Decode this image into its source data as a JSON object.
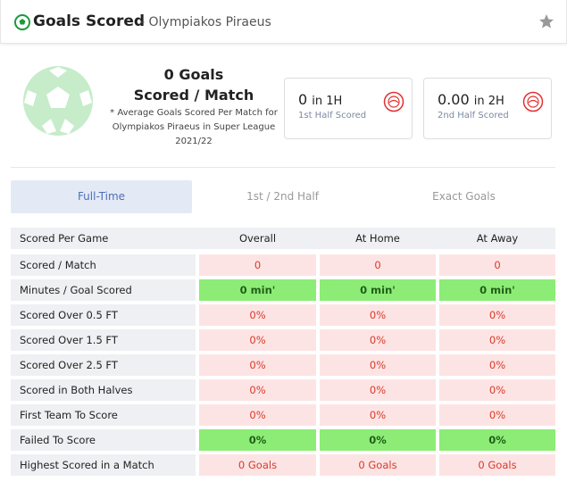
{
  "header": {
    "title": "Goals Scored",
    "subtitle": "- Olympiakos Piraeus"
  },
  "summary": {
    "value": "0 Goals",
    "label": "Scored / Match",
    "note": "* Average Goals Scored Per Match for Olympiakos Piraeus in Super League 2021/22",
    "boxes": [
      {
        "value": "0",
        "unit": "in 1H",
        "label": "1st Half Scored"
      },
      {
        "value": "0.00",
        "unit": "in 2H",
        "label": "2nd Half Scored"
      }
    ]
  },
  "tabs": [
    {
      "label": "Full-Time",
      "active": true
    },
    {
      "label": "1st / 2nd Half",
      "active": false
    },
    {
      "label": "Exact Goals",
      "active": false
    }
  ],
  "table": {
    "columns": [
      "Scored Per Game",
      "Overall",
      "At Home",
      "At Away"
    ],
    "rows": [
      {
        "label": "Scored / Match",
        "values": [
          "0",
          "0",
          "0"
        ],
        "color": "bad"
      },
      {
        "label": "Minutes / Goal Scored",
        "values": [
          "0 min'",
          "0 min'",
          "0 min'"
        ],
        "color": "good"
      },
      {
        "label": "Scored Over 0.5 FT",
        "values": [
          "0%",
          "0%",
          "0%"
        ],
        "color": "bad"
      },
      {
        "label": "Scored Over 1.5 FT",
        "values": [
          "0%",
          "0%",
          "0%"
        ],
        "color": "bad"
      },
      {
        "label": "Scored Over 2.5 FT",
        "values": [
          "0%",
          "0%",
          "0%"
        ],
        "color": "bad"
      },
      {
        "label": "Scored in Both Halves",
        "values": [
          "0%",
          "0%",
          "0%"
        ],
        "color": "bad"
      },
      {
        "label": "First Team To Score",
        "values": [
          "0%",
          "0%",
          "0%"
        ],
        "color": "bad"
      },
      {
        "label": "Failed To Score",
        "values": [
          "0%",
          "0%",
          "0%"
        ],
        "color": "good"
      },
      {
        "label": "Highest Scored in a Match",
        "values": [
          "0 Goals",
          "0 Goals",
          "0 Goals"
        ],
        "color": "bad"
      }
    ]
  }
}
